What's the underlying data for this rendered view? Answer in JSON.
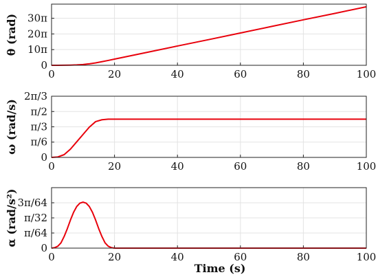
{
  "chart_data": [
    {
      "type": "line",
      "ylabel": "θ (rad)",
      "xlim": [
        0,
        100
      ],
      "ylim": [
        0,
        39
      ],
      "grid": true,
      "line_color": "#e8000b",
      "xticks": [
        {
          "v": 0,
          "label": "0"
        },
        {
          "v": 20,
          "label": "20"
        },
        {
          "v": 40,
          "label": "40"
        },
        {
          "v": 60,
          "label": "60"
        },
        {
          "v": 80,
          "label": "80"
        },
        {
          "v": 100,
          "label": "100"
        }
      ],
      "yticks": [
        {
          "v": 0,
          "label": "0"
        },
        {
          "v": 10,
          "label": "10π"
        },
        {
          "v": 20,
          "label": "20π"
        },
        {
          "v": 30,
          "label": "30π"
        }
      ],
      "series": [
        {
          "x": [
            0,
            2,
            4,
            6,
            8,
            10,
            12,
            14,
            16,
            18,
            20,
            30,
            40,
            50,
            60,
            70,
            80,
            90,
            100
          ],
          "y": [
            0,
            0.01,
            0.03,
            0.1,
            0.25,
            0.5,
            0.95,
            1.55,
            2.3,
            3.1,
            3.95,
            8.1,
            12.3,
            16.4,
            20.6,
            24.8,
            29.0,
            33.1,
            37.3
          ]
        }
      ]
    },
    {
      "type": "line",
      "ylabel": "ω (rad/s)",
      "xlim": [
        0,
        100
      ],
      "ylim": [
        0,
        0.6667
      ],
      "grid": true,
      "line_color": "#e8000b",
      "xticks": [
        {
          "v": 0,
          "label": "0"
        },
        {
          "v": 20,
          "label": "20"
        },
        {
          "v": 40,
          "label": "40"
        },
        {
          "v": 60,
          "label": "60"
        },
        {
          "v": 80,
          "label": "80"
        },
        {
          "v": 100,
          "label": "100"
        }
      ],
      "yticks": [
        {
          "v": 0,
          "label": "0"
        },
        {
          "v": 0.1667,
          "label": "π/6"
        },
        {
          "v": 0.3333,
          "label": "π/3"
        },
        {
          "v": 0.5,
          "label": "π/2"
        },
        {
          "v": 0.6667,
          "label": "2π/3"
        }
      ],
      "series": [
        {
          "x": [
            0,
            2,
            4,
            6,
            8,
            10,
            12,
            14,
            16,
            18,
            20,
            40,
            60,
            80,
            100
          ],
          "y": [
            0,
            0.005,
            0.03,
            0.09,
            0.17,
            0.25,
            0.33,
            0.39,
            0.41,
            0.417,
            0.417,
            0.417,
            0.417,
            0.417,
            0.417
          ]
        }
      ]
    },
    {
      "type": "line",
      "ylabel": "α (rad/s²)",
      "xlim": [
        0,
        100
      ],
      "ylim": [
        0,
        0.0625
      ],
      "grid": true,
      "line_color": "#e8000b",
      "xticks": [
        {
          "v": 0,
          "label": "0"
        },
        {
          "v": 20,
          "label": "20"
        },
        {
          "v": 40,
          "label": "40"
        },
        {
          "v": 60,
          "label": "60"
        },
        {
          "v": 80,
          "label": "80"
        },
        {
          "v": 100,
          "label": "100"
        }
      ],
      "yticks": [
        {
          "v": 0,
          "label": "0"
        },
        {
          "v": 0.015625,
          "label": "π/64"
        },
        {
          "v": 0.03125,
          "label": "π/32"
        },
        {
          "v": 0.046875,
          "label": "3π/64"
        }
      ],
      "series": [
        {
          "x": [
            0,
            1,
            2,
            3,
            4,
            5,
            6,
            7,
            8,
            9,
            10,
            11,
            12,
            13,
            14,
            15,
            16,
            17,
            18,
            19,
            20,
            40,
            60,
            80,
            100
          ],
          "y": [
            0,
            0.0005,
            0.002,
            0.0055,
            0.012,
            0.02,
            0.029,
            0.037,
            0.043,
            0.0465,
            0.0475,
            0.0465,
            0.043,
            0.037,
            0.029,
            0.02,
            0.012,
            0.0055,
            0.002,
            0.0005,
            0,
            0,
            0,
            0,
            0
          ]
        }
      ]
    }
  ],
  "xlabel": "Time (s)"
}
